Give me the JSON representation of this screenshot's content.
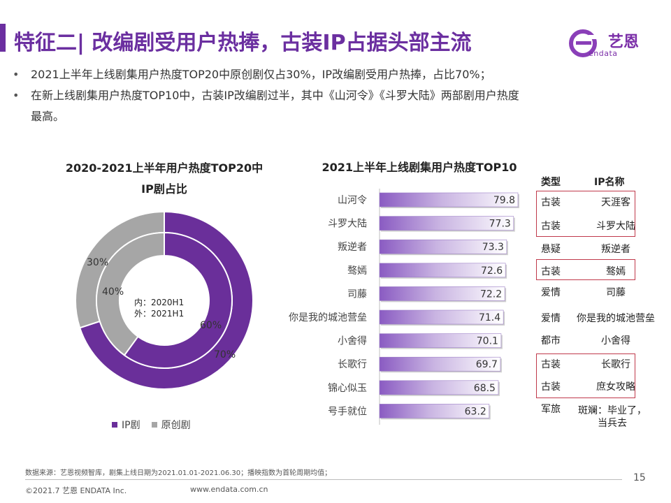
{
  "header": {
    "title": "特征二| 改编剧受用户热捧，古装IP占据头部主流",
    "logo_text": "艺恩",
    "logo_sub": "endata"
  },
  "bullets": [
    "2021上半年上线剧集用户热度TOP20中原创剧仅占30%，IP改编剧受用户热捧，占比70%；",
    "在新上线剧集用户热度TOP10中，古装IP改编剧过半，其中《山河令》《斗罗大陆》两部剧用户热度",
    "最高。"
  ],
  "donut": {
    "title_line1": "2020-2021上半年用户热度TOP20中",
    "title_line2": "IP剧占比",
    "center_line1": "内：2020H1",
    "center_line2": "外：2021H1",
    "outer_ip_label": "70%",
    "outer_orig_label": "30%",
    "inner_ip_label": "60%",
    "inner_orig_label": "40%",
    "legend": [
      {
        "label": "IP剧",
        "color": "#6a2f9a"
      },
      {
        "label": "原创剧",
        "color": "#a6a6a6"
      }
    ],
    "colors": {
      "ip": "#6a2f9a",
      "orig": "#a6a6a6"
    }
  },
  "chart_data": [
    {
      "type": "pie",
      "title": "2020-2021上半年用户热度TOP20中IP剧占比",
      "series": [
        {
          "name": "内：2020H1",
          "categories": [
            "IP剧",
            "原创剧"
          ],
          "values": [
            60,
            40
          ]
        },
        {
          "name": "外：2021H1",
          "categories": [
            "IP剧",
            "原创剧"
          ],
          "values": [
            70,
            30
          ]
        }
      ]
    },
    {
      "type": "bar",
      "orientation": "horizontal",
      "title": "2021上半年上线剧集用户热度TOP10",
      "categories": [
        "山河令",
        "斗罗大陆",
        "叛逆者",
        "骜嫣",
        "司藤",
        "你是我的城池营垒",
        "小舍得",
        "长歌行",
        "锦心似玉",
        "号手就位"
      ],
      "values": [
        79.8,
        77.3,
        73.3,
        72.6,
        72.2,
        71.4,
        70.1,
        69.7,
        68.5,
        63.2
      ],
      "xlim": [
        0,
        80
      ]
    }
  ],
  "table": {
    "col_type": "类型",
    "col_ip": "IP名称",
    "rows": [
      {
        "type": "古装",
        "ip": "天涯客"
      },
      {
        "type": "古装",
        "ip": "斗罗大陆"
      },
      {
        "type": "悬疑",
        "ip": "叛逆者"
      },
      {
        "type": "古装",
        "ip": "骜嫣"
      },
      {
        "type": "爱情",
        "ip": "司藤"
      },
      {
        "type": "爱情",
        "ip": "你是我的城池营垒"
      },
      {
        "type": "都市",
        "ip": "小舍得"
      },
      {
        "type": "古装",
        "ip": "长歌行"
      },
      {
        "type": "古装",
        "ip": "庶女攻略"
      },
      {
        "type": "军旅",
        "ip": "斑斓：毕业了，",
        "ip2": "当兵去"
      }
    ]
  },
  "footer": {
    "source": "数据来源：艺恩视频智库，剧集上线日期为2021.01.01-2021.06.30；播映指数为首轮周期均值；",
    "copyright": "©2021.7 艺恩 ENDATA Inc.",
    "url": "www.endata.com.cn",
    "page": "15"
  }
}
